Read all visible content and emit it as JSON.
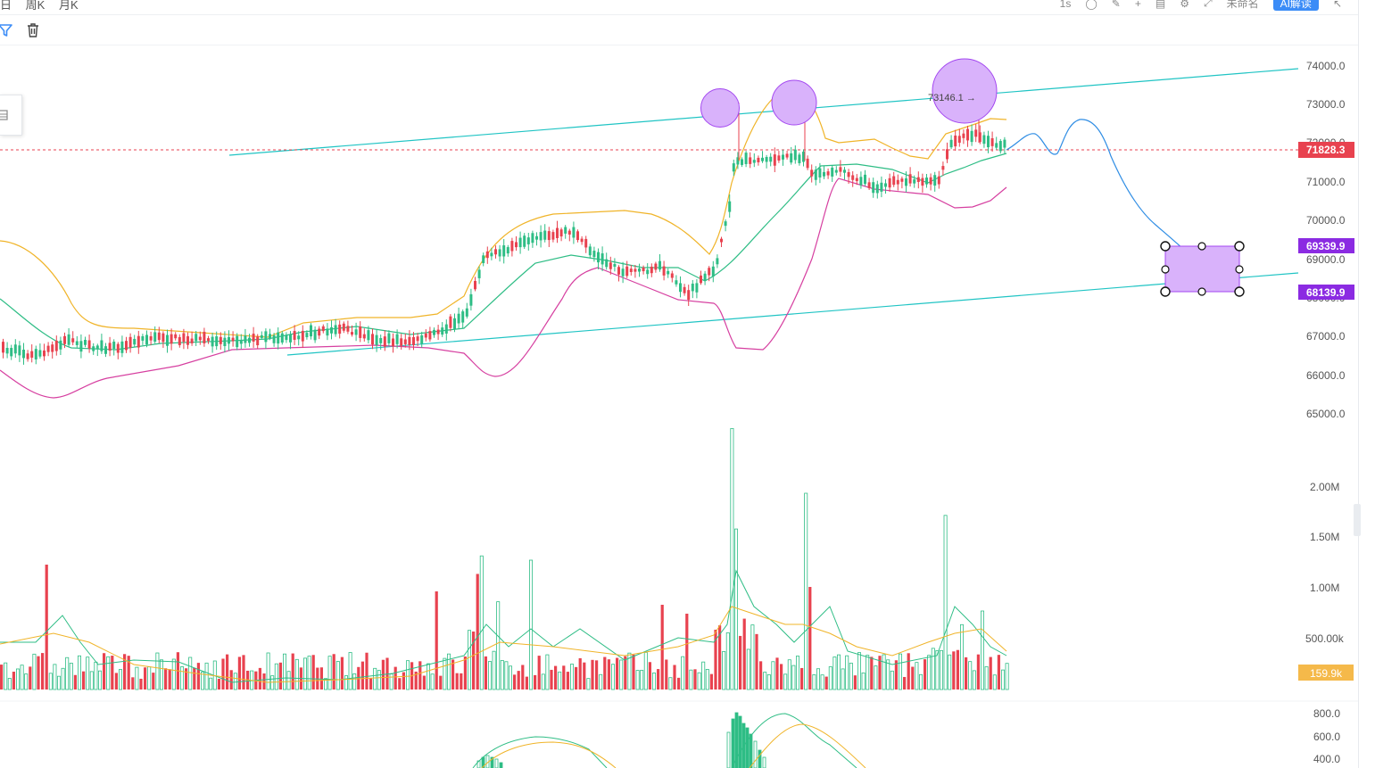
{
  "topbar": {
    "tabs": [
      "日",
      "周K",
      "月K"
    ],
    "interval": "1s",
    "untitled": "未命名",
    "ai_button": "AI解读"
  },
  "price_axis": {
    "labels": [
      "74000.0",
      "73000.0",
      "72000.0",
      "71000.0",
      "70000.0",
      "69000.0",
      "68000.0",
      "67000.0",
      "66000.0",
      "65000.0"
    ],
    "current_price": "71828.3",
    "box_top_price": "69339.9",
    "box_bottom_price": "68139.9"
  },
  "annotations": {
    "peak_label": "73146.1 →"
  },
  "volume_axis": {
    "labels": [
      "2.00M",
      "1.50M",
      "1.00M",
      "500.00k"
    ],
    "current_volume": "159.9k"
  },
  "indicator_axis": {
    "labels": [
      "800.0",
      "600.0",
      "400.0"
    ]
  },
  "colors": {
    "up": "#2ebd85",
    "down": "#e8424f",
    "ma_fast": "#f0b429",
    "ma_mid": "#2ebd85",
    "band_lower": "#d63fa0",
    "trendline": "#20c4c4",
    "projection": "#2f8de4",
    "annotation_fill": "#d9b2fb",
    "annotation_stroke": "#a347f0",
    "price_tag": "#e8424f",
    "box_tag": "#8b2be2",
    "volume_tag": "#f5b94a"
  },
  "icons": [
    "filter-icon",
    "trash-icon",
    "layers-icon",
    "camera-icon",
    "pencil-icon",
    "settings-icon",
    "fullscreen-icon",
    "share-icon"
  ]
}
